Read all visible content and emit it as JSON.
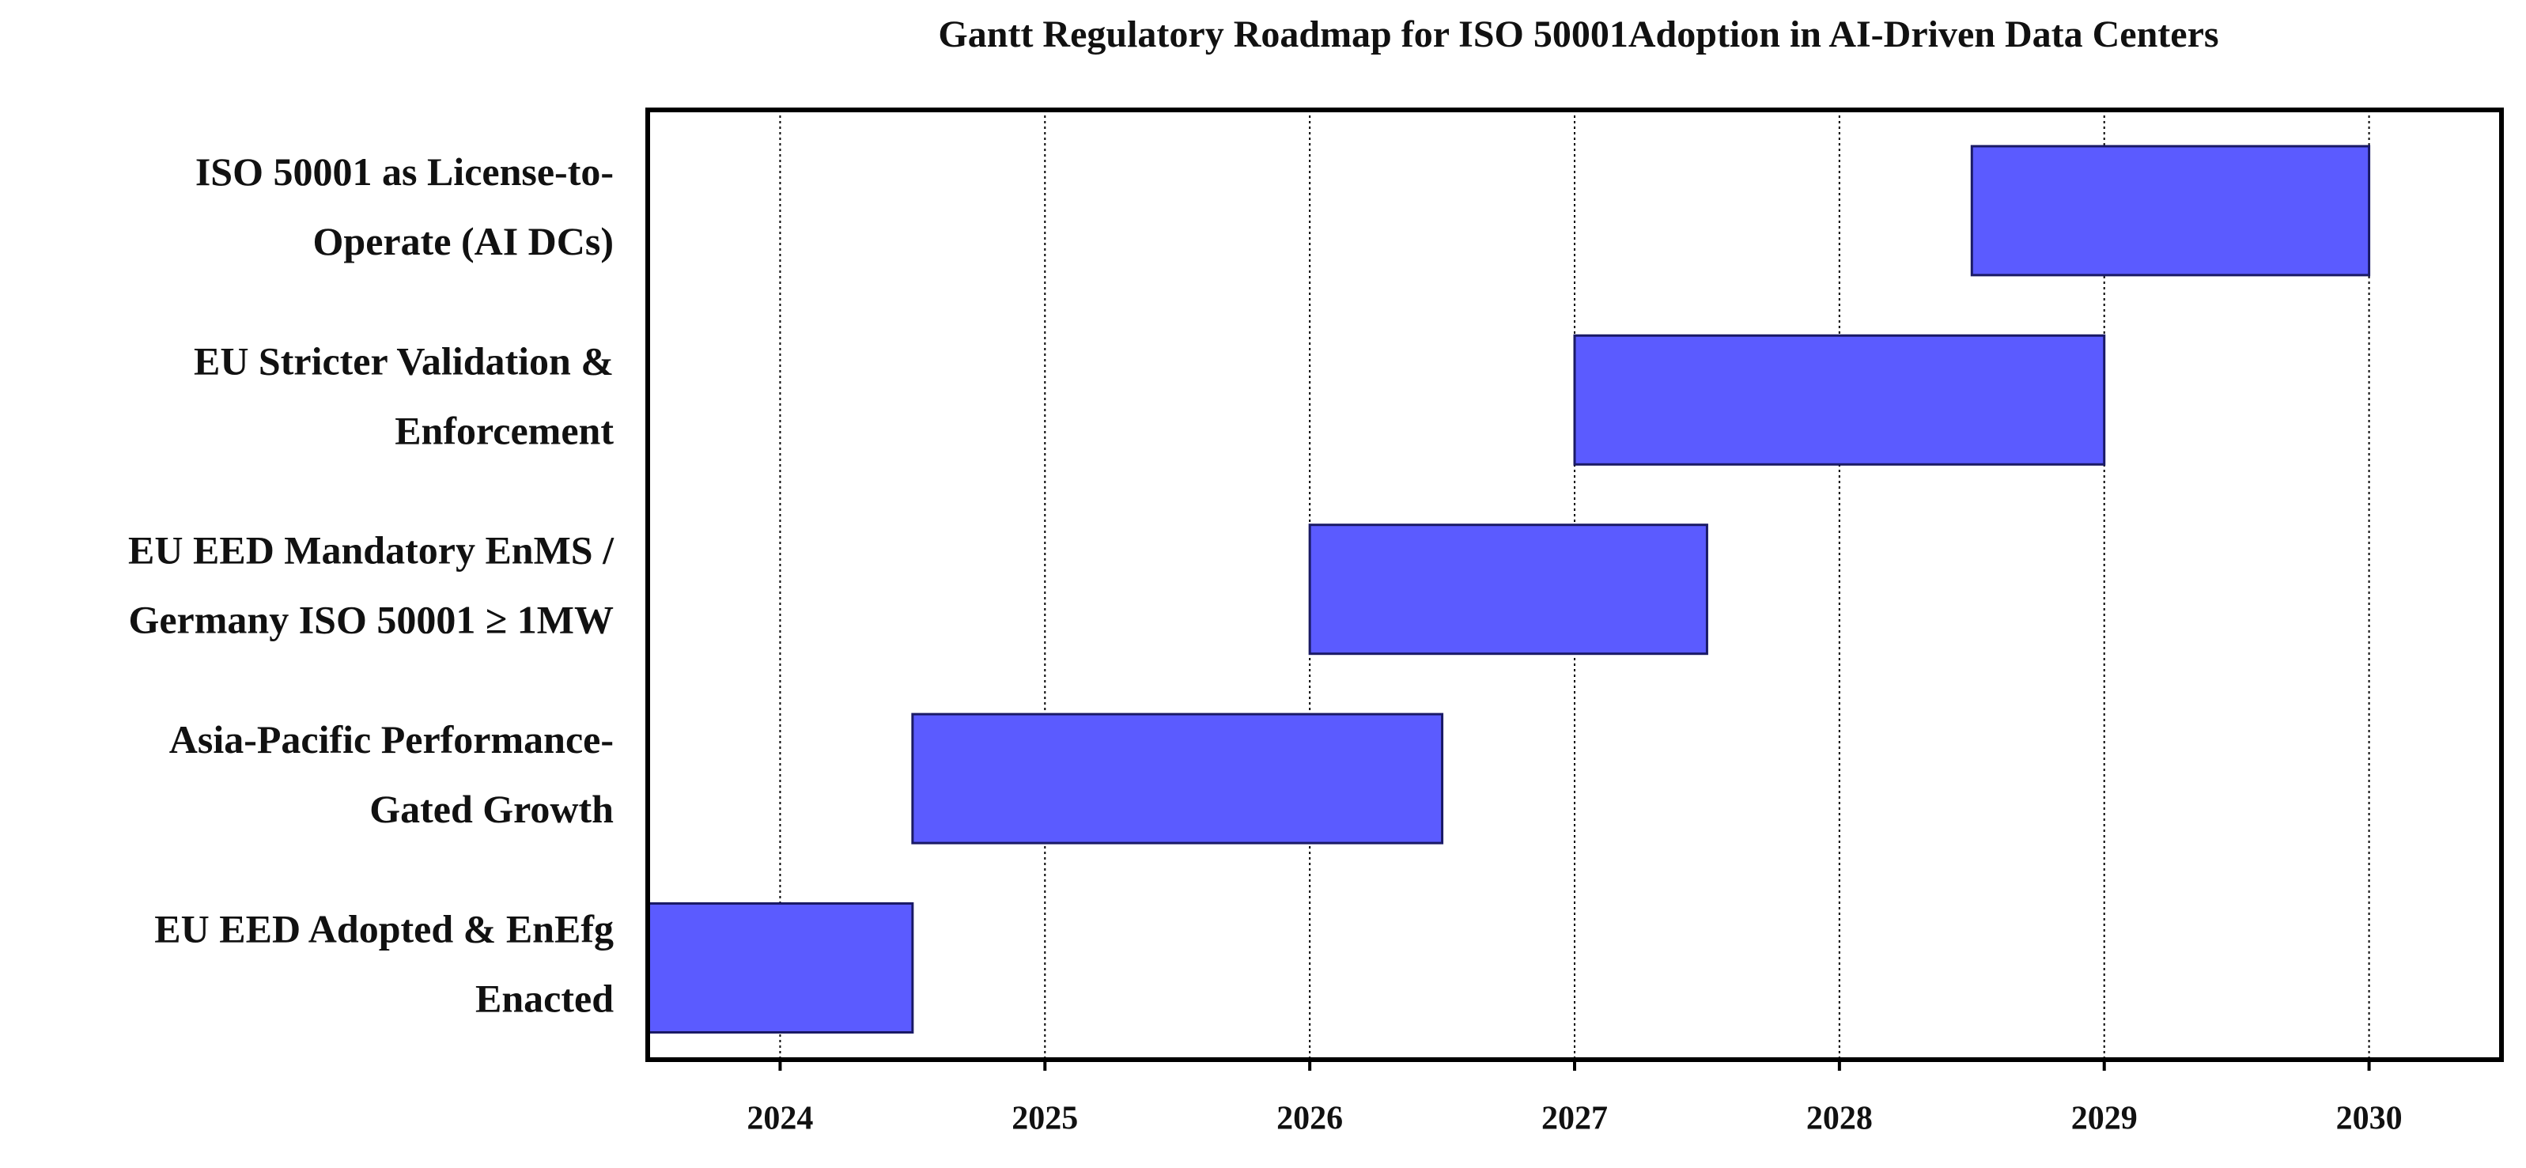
{
  "chart_data": {
    "type": "gantt",
    "title": "Gantt Regulatory Roadmap for ISO 50001Adoption in AI-Driven Data Centers",
    "categories": [
      [
        "EU EED Adopted & EnEfg",
        "Enacted"
      ],
      [
        "Asia-Pacific Performance-",
        "Gated Growth"
      ],
      [
        "EU EED Mandatory EnMS /",
        "Germany ISO 50001 ≥ 1MW"
      ],
      [
        "EU Stricter Validation &",
        "Enforcement"
      ],
      [
        "ISO 50001 as License-to-",
        "Operate (AI DCs)"
      ]
    ],
    "start": [
      2023.5,
      2024.5,
      2026,
      2027,
      2028.5
    ],
    "end": [
      2024.5,
      2026.5,
      2027.5,
      2029,
      2030
    ],
    "color": "#5b5bff",
    "xlim": [
      2023.5,
      2030.5
    ],
    "xticks": [
      2024,
      2025,
      2026,
      2027,
      2028,
      2029,
      2030
    ],
    "grid": true
  }
}
